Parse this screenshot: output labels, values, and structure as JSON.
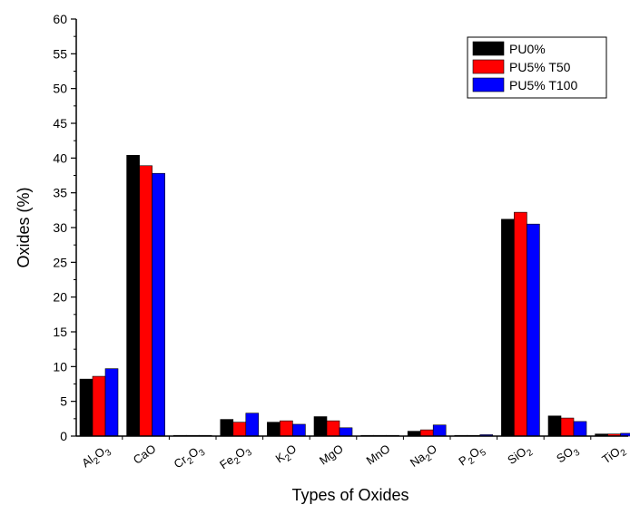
{
  "chart_data": {
    "type": "bar",
    "xlabel": "Types of Oxides",
    "ylabel": "Oxides (%)",
    "ylim": [
      0,
      60
    ],
    "yticks": [
      0,
      5,
      10,
      15,
      20,
      25,
      30,
      35,
      40,
      45,
      50,
      55,
      60
    ],
    "legend_position": "top-right",
    "categories": [
      {
        "name": "Al2O3",
        "base": "Al",
        "sub1": "2",
        "mid": "O",
        "sub2": "3"
      },
      {
        "name": "CaO",
        "base": "CaO",
        "sub1": "",
        "mid": "",
        "sub2": ""
      },
      {
        "name": "Cr2O3",
        "base": "Cr",
        "sub1": "2",
        "mid": "O",
        "sub2": "3"
      },
      {
        "name": "Fe2O3",
        "base": "Fe",
        "sub1": "2",
        "mid": "O",
        "sub2": "3"
      },
      {
        "name": "K2O",
        "base": "K",
        "sub1": "2",
        "mid": "O",
        "sub2": ""
      },
      {
        "name": "MgO",
        "base": "MgO",
        "sub1": "",
        "mid": "",
        "sub2": ""
      },
      {
        "name": "MnO",
        "base": "MnO",
        "sub1": "",
        "mid": "",
        "sub2": ""
      },
      {
        "name": "Na2O",
        "base": "Na",
        "sub1": "2",
        "mid": "O",
        "sub2": ""
      },
      {
        "name": "P2O5",
        "base": "P",
        "sub1": "2",
        "mid": "O",
        "sub2": "5"
      },
      {
        "name": "SiO2",
        "base": "SiO",
        "sub1": "2",
        "mid": "",
        "sub2": ""
      },
      {
        "name": "SO3",
        "base": "SO",
        "sub1": "3",
        "mid": "",
        "sub2": ""
      },
      {
        "name": "TiO2",
        "base": "TiO",
        "sub1": "2",
        "mid": "",
        "sub2": ""
      }
    ],
    "series": [
      {
        "name": "PU0%",
        "color": "#000000",
        "values": [
          8.2,
          40.4,
          0.1,
          2.4,
          2.0,
          2.8,
          0.1,
          0.7,
          0.1,
          31.2,
          2.9,
          0.3
        ]
      },
      {
        "name": "PU5% T50",
        "color": "#ff0000",
        "values": [
          8.6,
          38.9,
          0.1,
          2.0,
          2.2,
          2.2,
          0.1,
          0.9,
          0.1,
          32.2,
          2.6,
          0.3
        ]
      },
      {
        "name": "PU5% T100",
        "color": "#0000ff",
        "values": [
          9.7,
          37.8,
          0.1,
          3.3,
          1.7,
          1.2,
          0.1,
          1.6,
          0.2,
          30.5,
          2.1,
          0.4
        ]
      }
    ]
  }
}
